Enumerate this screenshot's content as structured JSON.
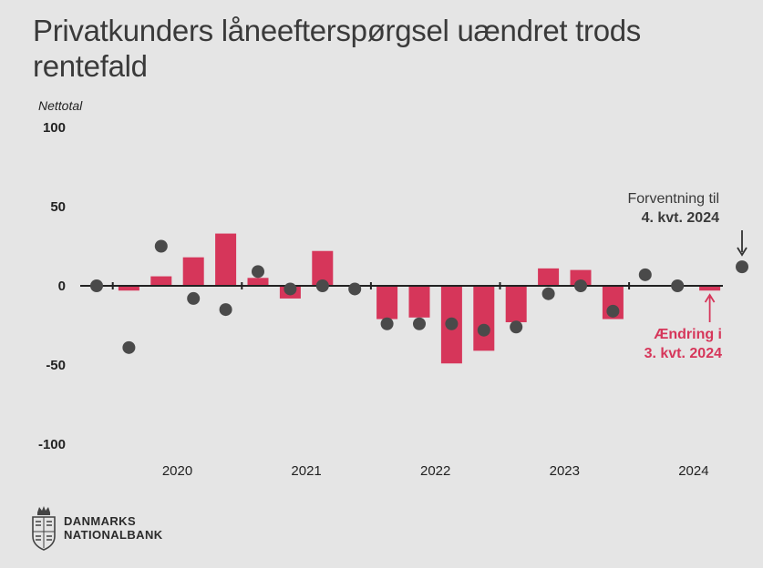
{
  "title": "Privatkunders låneefterspørgsel uændret trods rentefald",
  "chart_data": {
    "type": "bar",
    "ylabel": "Nettotal",
    "ylim": [
      -100,
      100
    ],
    "yticks": [
      100,
      50,
      0,
      -50,
      -100
    ],
    "year_labels": [
      "2020",
      "2021",
      "2022",
      "2023",
      "2024"
    ],
    "categories": [
      "2019K4",
      "2020K1",
      "2020K2",
      "2020K3",
      "2020K4",
      "2021K1",
      "2021K2",
      "2021K3",
      "2021K4",
      "2022K1",
      "2022K2",
      "2022K3",
      "2022K4",
      "2023K1",
      "2023K2",
      "2023K3",
      "2023K4",
      "2024K1",
      "2024K2",
      "2024K3",
      "2024K4"
    ],
    "series": [
      {
        "name": "Ændring",
        "kind": "bar",
        "color": "#d6365a",
        "values": [
          null,
          -3,
          6,
          18,
          33,
          5,
          -8,
          22,
          null,
          -21,
          -20,
          -49,
          -41,
          -23,
          11,
          10,
          -21,
          null,
          null,
          -3,
          null
        ]
      },
      {
        "name": "Forventning",
        "kind": "dot",
        "color": "#4a4a4a",
        "values": [
          0,
          -39,
          25,
          -8,
          -15,
          9,
          -2,
          0,
          -2,
          -24,
          -24,
          -24,
          -28,
          -26,
          -5,
          0,
          -16,
          7,
          0,
          null,
          12
        ]
      }
    ],
    "annotations": [
      {
        "text_lines": [
          "Forventning til",
          "4. kvt. 2024"
        ],
        "color": "#3a3a3a",
        "target_index": 20
      },
      {
        "text_lines": [
          "Ændring i",
          "3. kvt. 2024"
        ],
        "color": "#d6365a",
        "target_index": 19
      }
    ]
  },
  "logo": {
    "line1": "DANMARKS",
    "line2": "NATIONALBANK"
  }
}
